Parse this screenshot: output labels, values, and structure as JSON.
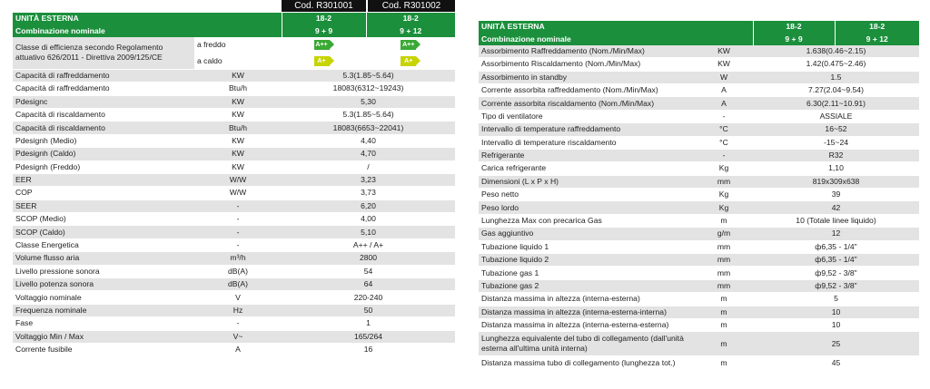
{
  "left": {
    "codes": [
      "Cod. R301001",
      "Cod. R301002"
    ],
    "header": {
      "label": "UNITÀ ESTERNA",
      "model1": "18-2",
      "model2": "18-2"
    },
    "combination": {
      "label": "Combinazione nominale",
      "c1": "9 + 9",
      "c2": "9 + 12"
    },
    "efficiency": {
      "label": "Classe di efficienza secondo Regolamento attuativo 626/2011 - Direttiva 2009/125/CE",
      "cold_label": "a freddo",
      "hot_label": "a caldo",
      "cold_class": "A++",
      "hot_class": "A+",
      "cold_color": "#3aa935",
      "hot_color": "#c7d400"
    },
    "rows": [
      {
        "name": "Capacità di raffreddamento",
        "unit": "KW",
        "value": "5.3(1.85~5.64)"
      },
      {
        "name": "Capacità di raffreddamento",
        "unit": "Btu/h",
        "value": "18083(6312~19243)"
      },
      {
        "name": "Pdesignc",
        "unit": "KW",
        "value": "5,30"
      },
      {
        "name": "Capacità di riscaldamento",
        "unit": "KW",
        "value": "5.3(1.85~5.64)"
      },
      {
        "name": "Capacità di riscaldamento",
        "unit": "Btu/h",
        "value": "18083(6653~22041)"
      },
      {
        "name": "Pdesignh (Medio)",
        "unit": "KW",
        "value": "4,40"
      },
      {
        "name": "Pdesignh (Caldo)",
        "unit": "KW",
        "value": "4,70"
      },
      {
        "name": "Pdesignh (Freddo)",
        "unit": "KW",
        "value": "/"
      },
      {
        "name": "EER",
        "unit": "W/W",
        "value": "3,23"
      },
      {
        "name": "COP",
        "unit": "W/W",
        "value": "3,73"
      },
      {
        "name": "SEER",
        "unit": "-",
        "value": "6,20"
      },
      {
        "name": "SCOP (Medio)",
        "unit": "-",
        "value": "4,00"
      },
      {
        "name": "SCOP (Caldo)",
        "unit": "-",
        "value": "5,10"
      },
      {
        "name": "Classe Energetica",
        "unit": "-",
        "value": "A++ / A+"
      },
      {
        "name": "Volume flusso aria",
        "unit": "m³/h",
        "value": "2800"
      },
      {
        "name": "Livello pressione sonora",
        "unit": "dB(A)",
        "value": "54"
      },
      {
        "name": "Livello potenza sonora",
        "unit": "dB(A)",
        "value": "64"
      },
      {
        "name": "Voltaggio nominale",
        "unit": "V",
        "value": "220-240"
      },
      {
        "name": "Frequenza nominale",
        "unit": "Hz",
        "value": "50"
      },
      {
        "name": "Fase",
        "unit": "-",
        "value": "1"
      },
      {
        "name": "Voltaggio Min / Max",
        "unit": "V~",
        "value": "165/264"
      },
      {
        "name": "Corrente fusibile",
        "unit": "A",
        "value": "16"
      }
    ]
  },
  "right": {
    "header": {
      "label": "UNITÀ ESTERNA",
      "model1": "18-2",
      "model2": "18-2"
    },
    "combination": {
      "label": "Combinazione nominale",
      "c1": "9 + 9",
      "c2": "9 + 12"
    },
    "rows": [
      {
        "name": "Assorbimento Raffreddamento (Nom./Min/Max)",
        "unit": "KW",
        "value": "1.638(0.46~2.15)"
      },
      {
        "name": "Assorbimento Riscaldamento (Nom./Min/Max)",
        "unit": "KW",
        "value": "1.42(0.475~2.46)"
      },
      {
        "name": "Assorbimento in standby",
        "unit": "W",
        "value": "1.5"
      },
      {
        "name": "Corrente assorbita raffreddamento (Nom./Min/Max)",
        "unit": "A",
        "value": "7.27(2.04~9.54)"
      },
      {
        "name": "Corrente assorbita riscaldamento (Nom./Min/Max)",
        "unit": "A",
        "value": "6.30(2.11~10.91)"
      },
      {
        "name": "Tipo di ventilatore",
        "unit": "-",
        "value": "ASSIALE"
      },
      {
        "name": "Intervallo di temperature raffreddamento",
        "unit": "°C",
        "value": "16~52"
      },
      {
        "name": "Intervallo di temperature riscaldamento",
        "unit": "°C",
        "value": "-15~24"
      },
      {
        "name": "Refrigerante",
        "unit": "-",
        "value": "R32"
      },
      {
        "name": "Carica refrigerante",
        "unit": "Kg",
        "value": "1,10"
      },
      {
        "name": "Dimensioni (L x P x H)",
        "unit": "mm",
        "value": "819x309x638"
      },
      {
        "name": "Peso netto",
        "unit": "Kg",
        "value": "39"
      },
      {
        "name": "Peso lordo",
        "unit": "Kg",
        "value": "42"
      },
      {
        "name": "Lunghezza Max con precarica Gas",
        "unit": "m",
        "value": "10 (Totale linee liquido)"
      },
      {
        "name": "Gas aggiuntivo",
        "unit": "g/m",
        "value": "12"
      },
      {
        "name": "Tubazione liquido 1",
        "unit": "mm",
        "value": "ф6,35 - 1/4\""
      },
      {
        "name": "Tubazione liquido 2",
        "unit": "mm",
        "value": "ф6,35 - 1/4\""
      },
      {
        "name": "Tubazione gas 1",
        "unit": "mm",
        "value": "ф9,52 - 3/8\""
      },
      {
        "name": "Tubazione gas 2",
        "unit": "mm",
        "value": "ф9,52 - 3/8\""
      },
      {
        "name": "Distanza massima in altezza (interna-esterna)",
        "unit": "m",
        "value": "5"
      },
      {
        "name": "Distanza massima in altezza (interna-esterna-interna)",
        "unit": "m",
        "value": "10"
      },
      {
        "name": "Distanza massima in altezza (interna-esterna-esterna)",
        "unit": "m",
        "value": "10"
      },
      {
        "name": "Lunghezza equivalente del tubo di collegamento (dall'unità esterna all'ultima unità interna)",
        "unit": "m",
        "value": "25"
      },
      {
        "name": "Distanza massima tubo di collegamento (lunghezza tot.)",
        "unit": "m",
        "value": "45"
      }
    ]
  }
}
